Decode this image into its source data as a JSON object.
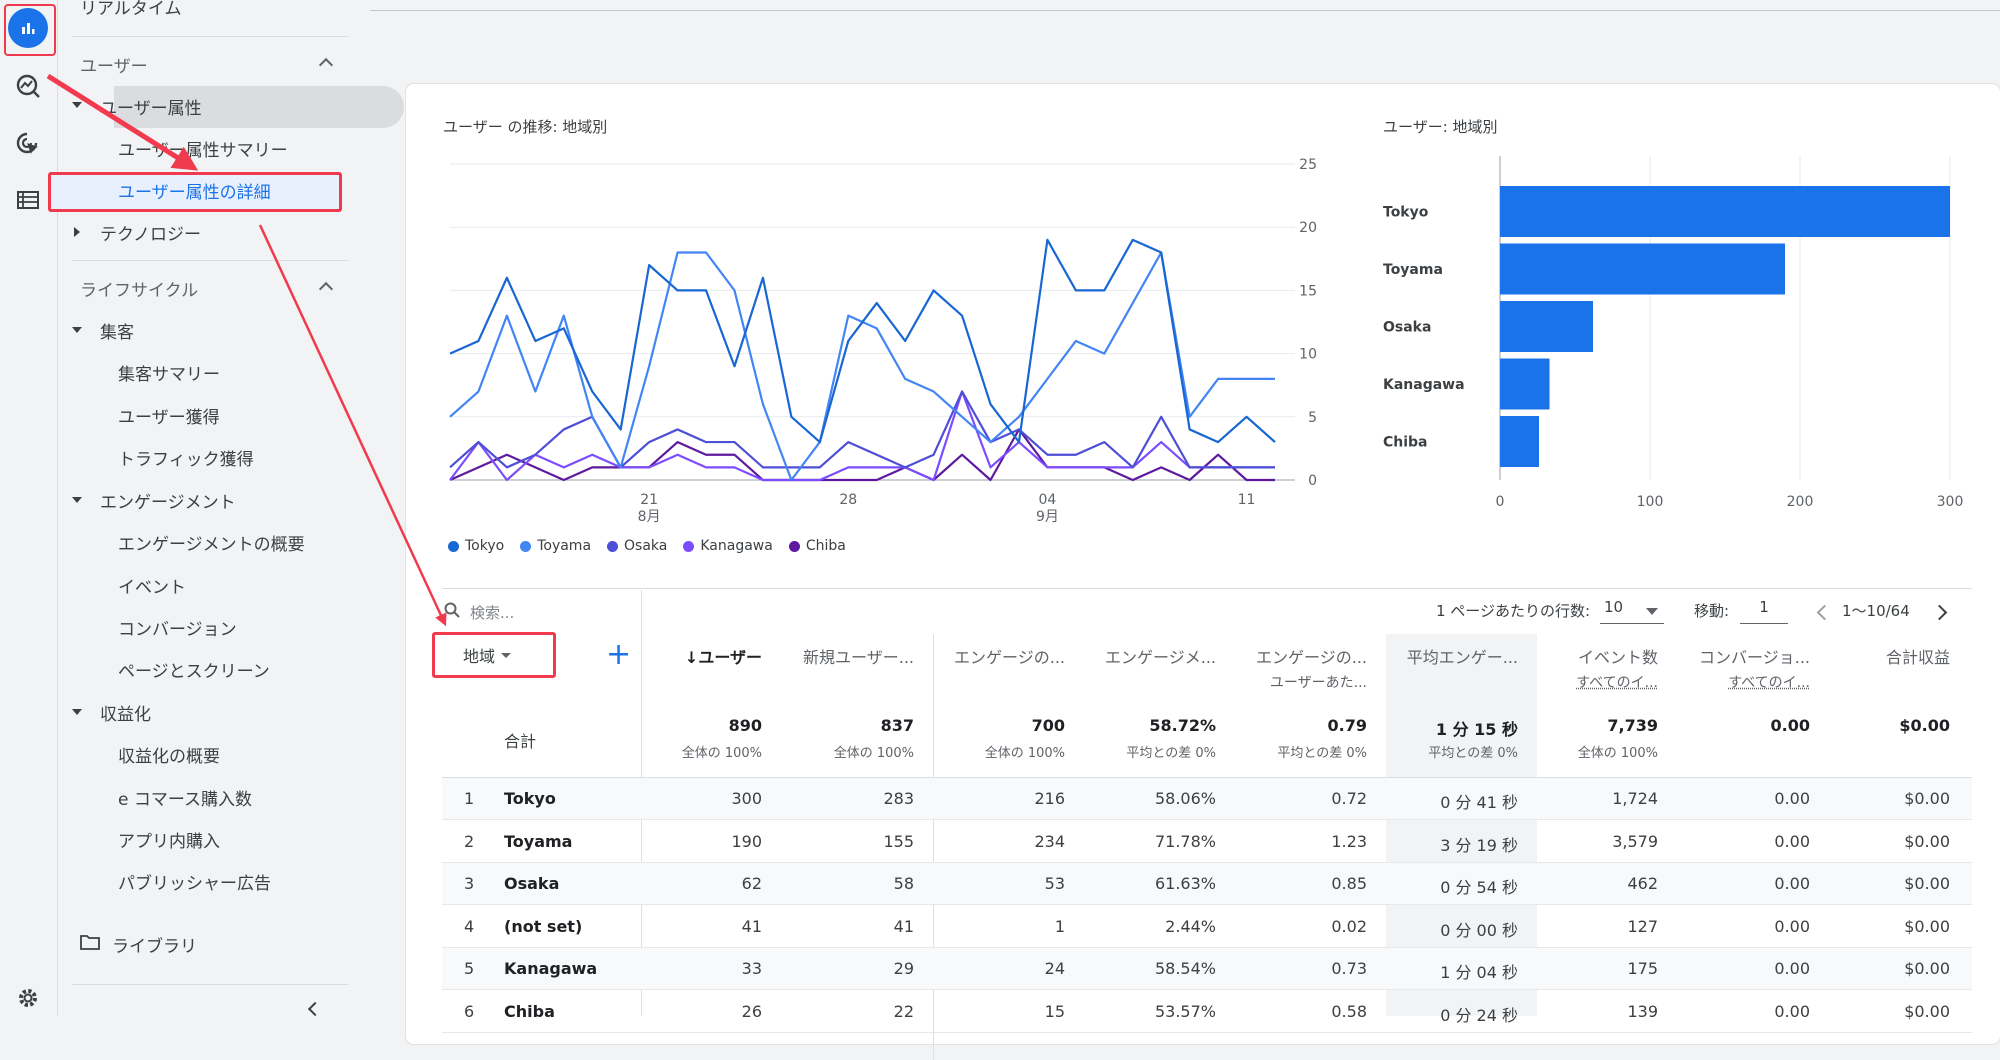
{
  "colors": {
    "accent": "#1a73e8",
    "annotation": "#f23a4f"
  },
  "nav": {
    "realtime": "リアルタイム",
    "user_section": "ユーザー",
    "user_attr": "ユーザー属性",
    "user_attr_summary": "ユーザー属性サマリー",
    "user_attr_detail": "ユーザー属性の詳細",
    "technology": "テクノロジー",
    "lifecycle": "ライフサイクル",
    "acquisition": "集客",
    "acq_summary": "集客サマリー",
    "user_acq": "ユーザー獲得",
    "traffic_acq": "トラフィック獲得",
    "engagement": "エンゲージメント",
    "eng_overview": "エンゲージメントの概要",
    "events": "イベント",
    "conversions": "コンバージョン",
    "pages": "ページとスクリーン",
    "monetization": "収益化",
    "mon_overview": "収益化の概要",
    "ecommerce": "e コマース購入数",
    "in_app": "アプリ内購入",
    "publisher_ads": "パブリッシャー広告",
    "library": "ライブラリ"
  },
  "line_chart": {
    "title": "ユーザー の推移: 地域別",
    "x_ticks": [
      {
        "day": "21",
        "month": "8月"
      },
      {
        "day": "28",
        "month": ""
      },
      {
        "day": "04",
        "month": "9月"
      },
      {
        "day": "11",
        "month": ""
      }
    ],
    "y_ticks": [
      "25",
      "20",
      "15",
      "10",
      "5",
      "0"
    ]
  },
  "bar_chart": {
    "title": "ユーザー: 地域別",
    "x_ticks": [
      "0",
      "100",
      "200",
      "300"
    ]
  },
  "chart_data": [
    {
      "type": "line",
      "title": "ユーザー の推移: 地域別",
      "ylim": [
        0,
        25
      ],
      "x": [
        "08-14",
        "08-15",
        "08-16",
        "08-17",
        "08-18",
        "08-19",
        "08-20",
        "08-21",
        "08-22",
        "08-23",
        "08-24",
        "08-25",
        "08-26",
        "08-27",
        "08-28",
        "08-29",
        "08-30",
        "08-31",
        "09-01",
        "09-02",
        "09-03",
        "09-04",
        "09-05",
        "09-06",
        "09-07",
        "09-08",
        "09-09",
        "09-10",
        "09-11",
        "09-12"
      ],
      "series": [
        {
          "name": "Tokyo",
          "color": "#1967d2",
          "values": [
            10,
            11,
            16,
            11,
            12,
            7,
            4,
            17,
            15,
            15,
            9,
            16,
            5,
            3,
            11,
            14,
            11,
            15,
            13,
            6,
            3,
            19,
            15,
            15,
            19,
            18,
            4,
            3,
            5,
            3
          ]
        },
        {
          "name": "Toyama",
          "color": "#4285f4",
          "values": [
            5,
            7,
            13,
            7,
            13,
            5,
            1,
            9,
            18,
            18,
            15,
            6,
            0,
            3,
            13,
            12,
            8,
            7,
            5,
            3,
            5,
            8,
            11,
            10,
            14,
            18,
            5,
            8,
            8,
            8
          ]
        },
        {
          "name": "Osaka",
          "color": "#4d4fd6",
          "values": [
            1,
            3,
            1,
            2,
            4,
            5,
            1,
            3,
            4,
            3,
            3,
            1,
            1,
            1,
            3,
            2,
            1,
            2,
            7,
            3,
            4,
            2,
            2,
            3,
            1,
            5,
            1,
            1,
            1,
            1
          ]
        },
        {
          "name": "Kanagawa",
          "color": "#7c4dff",
          "values": [
            0,
            3,
            0,
            2,
            1,
            2,
            1,
            1,
            2,
            1,
            1,
            0,
            0,
            0,
            1,
            1,
            1,
            0,
            7,
            1,
            3,
            1,
            1,
            1,
            1,
            3,
            1,
            1,
            1,
            1
          ]
        },
        {
          "name": "Chiba",
          "color": "#5e1a9e",
          "values": [
            0,
            1,
            2,
            1,
            0,
            1,
            1,
            1,
            3,
            2,
            2,
            0,
            0,
            0,
            0,
            0,
            1,
            0,
            2,
            0,
            4,
            1,
            1,
            1,
            0,
            1,
            0,
            2,
            0,
            0
          ]
        }
      ]
    },
    {
      "type": "bar",
      "title": "ユーザー: 地域別",
      "orientation": "horizontal",
      "categories": [
        "Tokyo",
        "Toyama",
        "Osaka",
        "Kanagawa",
        "Chiba"
      ],
      "values": [
        300,
        190,
        62,
        33,
        26
      ],
      "xlim": [
        0,
        300
      ],
      "color": "#1a73e8"
    }
  ],
  "table": {
    "search_placeholder": "検索...",
    "rows_per_page_label": "1 ページあたりの行数:",
    "rows_per_page": "10",
    "goto_label": "移動:",
    "goto_value": "1",
    "range": "1〜10/64",
    "dimension": "地域",
    "total_label": "合計",
    "columns": [
      {
        "label": "↓ユーザー",
        "sub": ""
      },
      {
        "label": "新規ユーザー...",
        "sub": ""
      },
      {
        "label": "エンゲージの...",
        "sub": ""
      },
      {
        "label": "エンゲージメ...",
        "sub": ""
      },
      {
        "label": "エンゲージの...",
        "sub": "ユーザーあた..."
      },
      {
        "label": "平均エンゲー...",
        "sub": ""
      },
      {
        "label": "イベント数",
        "sub": "すべてのイ..."
      },
      {
        "label": "コンバージョ...",
        "sub": "すべてのイ..."
      },
      {
        "label": "合計収益",
        "sub": ""
      }
    ],
    "totals": [
      {
        "value": "890",
        "pct": "全体の 100%"
      },
      {
        "value": "837",
        "pct": "全体の 100%"
      },
      {
        "value": "700",
        "pct": "全体の 100%"
      },
      {
        "value": "58.72%",
        "pct": "平均との差 0%"
      },
      {
        "value": "0.79",
        "pct": "平均との差 0%"
      },
      {
        "value": "1 分 15 秒",
        "pct": "平均との差 0%"
      },
      {
        "value": "7,739",
        "pct": "全体の 100%"
      },
      {
        "value": "0.00",
        "pct": ""
      },
      {
        "value": "$0.00",
        "pct": ""
      }
    ],
    "rows": [
      {
        "idx": "1",
        "name": "Tokyo",
        "vals": [
          "300",
          "283",
          "216",
          "58.06%",
          "0.72",
          "0 分 41 秒",
          "1,724",
          "0.00",
          "$0.00"
        ]
      },
      {
        "idx": "2",
        "name": "Toyama",
        "vals": [
          "190",
          "155",
          "234",
          "71.78%",
          "1.23",
          "3 分 19 秒",
          "3,579",
          "0.00",
          "$0.00"
        ]
      },
      {
        "idx": "3",
        "name": "Osaka",
        "vals": [
          "62",
          "58",
          "53",
          "61.63%",
          "0.85",
          "0 分 54 秒",
          "462",
          "0.00",
          "$0.00"
        ]
      },
      {
        "idx": "4",
        "name": "(not set)",
        "vals": [
          "41",
          "41",
          "1",
          "2.44%",
          "0.02",
          "0 分 00 秒",
          "127",
          "0.00",
          "$0.00"
        ]
      },
      {
        "idx": "5",
        "name": "Kanagawa",
        "vals": [
          "33",
          "29",
          "24",
          "58.54%",
          "0.73",
          "1 分 04 秒",
          "175",
          "0.00",
          "$0.00"
        ]
      },
      {
        "idx": "6",
        "name": "Chiba",
        "vals": [
          "26",
          "22",
          "15",
          "53.57%",
          "0.58",
          "0 分 24 秒",
          "139",
          "0.00",
          "$0.00"
        ]
      }
    ]
  }
}
